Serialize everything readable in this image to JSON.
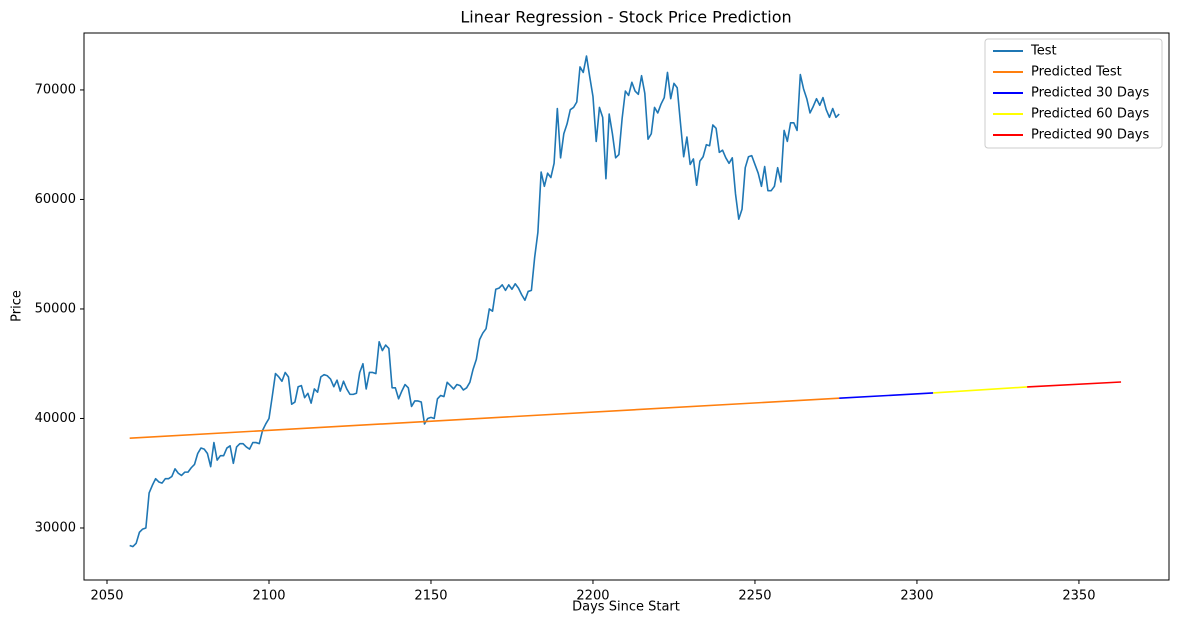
{
  "chart_data": {
    "type": "line",
    "title": "Linear Regression - Stock Price Prediction",
    "x_label": "Days Since Start",
    "y_label": "Price",
    "xlim": [
      2042.9,
      2377.8
    ],
    "ylim": [
      25250,
      75200
    ],
    "xticks": [
      2050,
      2100,
      2150,
      2200,
      2250,
      2300,
      2350
    ],
    "yticks": [
      30000,
      40000,
      50000,
      60000,
      70000
    ],
    "grid": false,
    "legend": "upper right",
    "series": [
      {
        "name": "Test",
        "color": "#1f77b4",
        "x": [
          2057,
          2058,
          2059,
          2060,
          2061,
          2062,
          2063,
          2064,
          2065,
          2066,
          2067,
          2068,
          2069,
          2070,
          2071,
          2072,
          2073,
          2074,
          2075,
          2076,
          2077,
          2078,
          2079,
          2080,
          2081,
          2082,
          2083,
          2084,
          2085,
          2086,
          2087,
          2088,
          2089,
          2090,
          2091,
          2092,
          2093,
          2094,
          2095,
          2096,
          2097,
          2098,
          2099,
          2100,
          2101,
          2102,
          2103,
          2104,
          2105,
          2106,
          2107,
          2108,
          2109,
          2110,
          2111,
          2112,
          2113,
          2114,
          2115,
          2116,
          2117,
          2118,
          2119,
          2120,
          2121,
          2122,
          2123,
          2124,
          2125,
          2126,
          2127,
          2128,
          2129,
          2130,
          2131,
          2132,
          2133,
          2134,
          2135,
          2136,
          2137,
          2138,
          2139,
          2140,
          2141,
          2142,
          2143,
          2144,
          2145,
          2146,
          2147,
          2148,
          2149,
          2150,
          2151,
          2152,
          2153,
          2154,
          2155,
          2156,
          2157,
          2158,
          2159,
          2160,
          2161,
          2162,
          2163,
          2164,
          2165,
          2166,
          2167,
          2168,
          2169,
          2170,
          2171,
          2172,
          2173,
          2174,
          2175,
          2176,
          2177,
          2178,
          2179,
          2180,
          2181,
          2182,
          2183,
          2184,
          2185,
          2186,
          2187,
          2188,
          2189,
          2190,
          2191,
          2192,
          2193,
          2194,
          2195,
          2196,
          2197,
          2198,
          2199,
          2200,
          2201,
          2202,
          2203,
          2204,
          2205,
          2206,
          2207,
          2208,
          2209,
          2210,
          2211,
          2212,
          2213,
          2214,
          2215,
          2216,
          2217,
          2218,
          2219,
          2220,
          2221,
          2222,
          2223,
          2224,
          2225,
          2226,
          2227,
          2228,
          2229,
          2230,
          2231,
          2232,
          2233,
          2234,
          2235,
          2236,
          2237,
          2238,
          2239,
          2240,
          2241,
          2242,
          2243,
          2244,
          2245,
          2246,
          2247,
          2248,
          2249,
          2250,
          2251,
          2252,
          2253,
          2254,
          2255,
          2256,
          2257,
          2258,
          2259,
          2260,
          2261,
          2262,
          2263,
          2264,
          2265,
          2266,
          2267,
          2268,
          2269,
          2270,
          2271,
          2272,
          2273,
          2274,
          2275,
          2276
        ],
        "values": [
          28400,
          28300,
          28600,
          29600,
          29900,
          30000,
          33200,
          33900,
          34500,
          34200,
          34100,
          34500,
          34500,
          34700,
          35400,
          35000,
          34800,
          35100,
          35100,
          35500,
          35800,
          36800,
          37300,
          37200,
          36800,
          35600,
          37800,
          36200,
          36600,
          36600,
          37300,
          37500,
          35900,
          37400,
          37700,
          37700,
          37400,
          37200,
          37800,
          37800,
          37700,
          38900,
          39500,
          40000,
          42000,
          44100,
          43800,
          43400,
          44200,
          43800,
          41300,
          41500,
          42900,
          43000,
          41900,
          42300,
          41400,
          42700,
          42400,
          43800,
          44000,
          43900,
          43600,
          42900,
          43500,
          42500,
          43400,
          42700,
          42200,
          42200,
          42300,
          44200,
          45000,
          42700,
          44200,
          44200,
          44100,
          47000,
          46200,
          46700,
          46400,
          42800,
          42800,
          41800,
          42500,
          43100,
          42800,
          41100,
          41600,
          41600,
          41500,
          39500,
          40000,
          40100,
          40000,
          41800,
          42100,
          42000,
          43300,
          43000,
          42700,
          43100,
          43000,
          42600,
          42800,
          43300,
          44500,
          45400,
          47200,
          47800,
          48200,
          50000,
          49800,
          51800,
          51900,
          52200,
          51700,
          52200,
          51800,
          52300,
          51900,
          51300,
          50800,
          51600,
          51700,
          54700,
          57000,
          62500,
          61200,
          62400,
          62000,
          63300,
          68300,
          63800,
          66000,
          66900,
          68200,
          68400,
          68900,
          72100,
          71600,
          73100,
          71200,
          69400,
          65300,
          68400,
          67500,
          61900,
          67800,
          66000,
          63800,
          64100,
          67400,
          69900,
          69500,
          70700,
          69900,
          69600,
          71300,
          69700,
          65500,
          66000,
          68400,
          67900,
          68700,
          69300,
          71600,
          69200,
          70600,
          70200,
          67000,
          63900,
          65700,
          63200,
          63700,
          61300,
          63500,
          63900,
          65000,
          64900,
          66800,
          66500,
          64300,
          64500,
          63800,
          63300,
          63800,
          60500,
          58200,
          59100,
          62900,
          63900,
          64000,
          63200,
          62400,
          61200,
          63000,
          60800,
          60800,
          61200,
          62900,
          61600,
          66300,
          65300,
          67000,
          67000,
          66300,
          71400,
          70100,
          69200,
          67900,
          68500,
          69200,
          68600,
          69300,
          68200,
          67500,
          68300,
          67500,
          67800
        ]
      },
      {
        "name": "Predicted Test",
        "color": "#ff7f0e",
        "x": [
          2057,
          2276
        ],
        "values": [
          38200,
          41850
        ]
      },
      {
        "name": "Predicted 30 Days",
        "color": "#0000ff",
        "x": [
          2276,
          2305
        ],
        "values": [
          41850,
          42330
        ]
      },
      {
        "name": "Predicted 60 Days",
        "color": "#ffff00",
        "x": [
          2305,
          2334
        ],
        "values": [
          42330,
          42880
        ]
      },
      {
        "name": "Predicted 90 Days",
        "color": "#ff0000",
        "x": [
          2334,
          2363
        ],
        "values": [
          42880,
          43330
        ]
      }
    ]
  }
}
